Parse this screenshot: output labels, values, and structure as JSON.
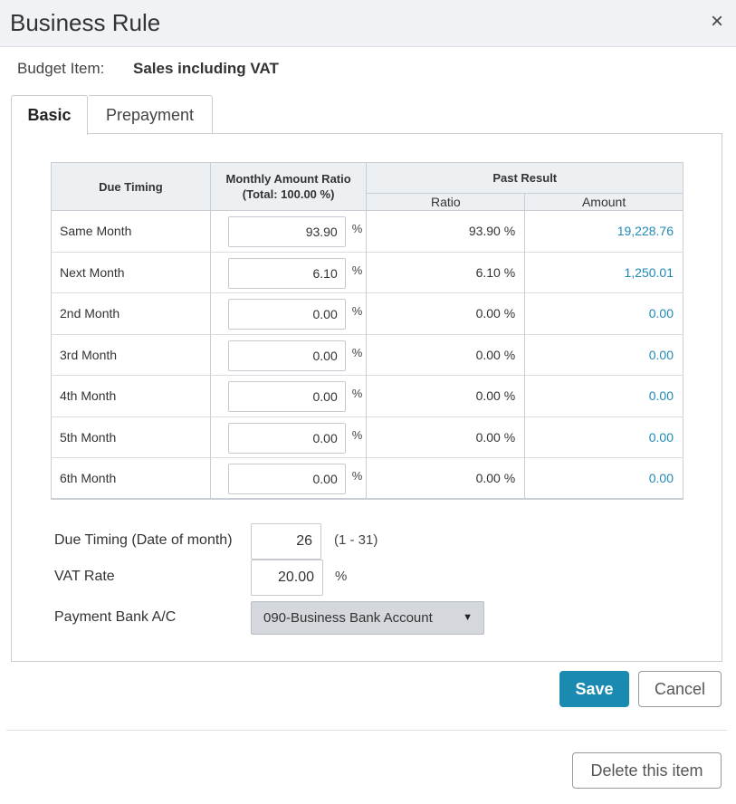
{
  "dialog": {
    "title": "Business Rule",
    "close_label": "×"
  },
  "budget_item": {
    "label": "Budget Item:",
    "value": "Sales including VAT"
  },
  "tabs": [
    {
      "label": "Basic",
      "active": true
    },
    {
      "label": "Prepayment",
      "active": false
    }
  ],
  "table": {
    "headers": {
      "due_timing": "Due Timing",
      "monthly_ratio_line1": "Monthly Amount Ratio",
      "monthly_ratio_line2": "(Total: 100.00 %)",
      "past_result": "Past Result",
      "ratio": "Ratio",
      "amount": "Amount"
    },
    "unit": "%",
    "rows": [
      {
        "timing": "Same Month",
        "ratio_input": "93.90",
        "past_ratio": "93.90 %",
        "amount": "19,228.76"
      },
      {
        "timing": "Next Month",
        "ratio_input": "6.10",
        "past_ratio": "6.10 %",
        "amount": "1,250.01"
      },
      {
        "timing": "2nd Month",
        "ratio_input": "0.00",
        "past_ratio": "0.00 %",
        "amount": "0.00"
      },
      {
        "timing": "3rd Month",
        "ratio_input": "0.00",
        "past_ratio": "0.00 %",
        "amount": "0.00"
      },
      {
        "timing": "4th Month",
        "ratio_input": "0.00",
        "past_ratio": "0.00 %",
        "amount": "0.00"
      },
      {
        "timing": "5th Month",
        "ratio_input": "0.00",
        "past_ratio": "0.00 %",
        "amount": "0.00"
      },
      {
        "timing": "6th Month",
        "ratio_input": "0.00",
        "past_ratio": "0.00 %",
        "amount": "0.00"
      }
    ]
  },
  "fields": {
    "due_date": {
      "label": "Due Timing (Date of month)",
      "value": "26",
      "range": "(1 - 31)"
    },
    "vat_rate": {
      "label": "VAT Rate",
      "value": "20.00",
      "unit": "%"
    },
    "payment_bank": {
      "label": "Payment Bank A/C",
      "selected": "090-Business Bank Account"
    }
  },
  "buttons": {
    "save": "Save",
    "cancel": "Cancel",
    "delete": "Delete this item"
  },
  "colors": {
    "accent": "#1a8ab0",
    "amount_link": "#1f8ab5"
  }
}
